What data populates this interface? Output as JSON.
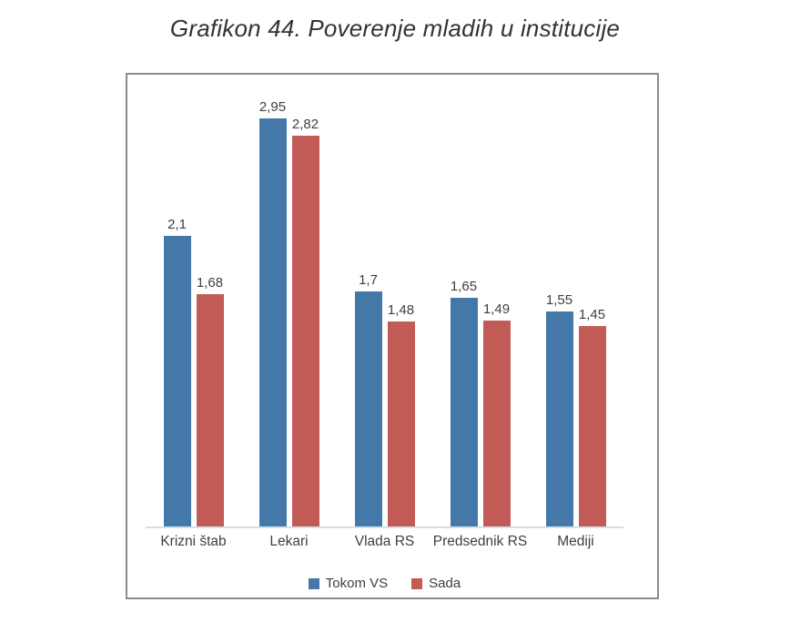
{
  "page": {
    "title": "Grafikon 44. Poverenje mladih u institucije"
  },
  "chart_data": {
    "type": "bar",
    "title": "Grafikon 44. Poverenje mladih u institucije",
    "categories": [
      "Krizni štab",
      "Lekari",
      "Vlada RS",
      "Predsednik RS",
      "Mediji"
    ],
    "series": [
      {
        "name": "Tokom VS",
        "color": "#4478A8",
        "values": [
          2.1,
          2.95,
          1.7,
          1.65,
          1.55
        ],
        "labels": [
          "2,1",
          "2,95",
          "1,7",
          "1,65",
          "1,55"
        ]
      },
      {
        "name": "Sada",
        "color": "#C25B56",
        "values": [
          1.68,
          2.82,
          1.48,
          1.49,
          1.45
        ],
        "labels": [
          "1,68",
          "2,82",
          "1,48",
          "1,49",
          "1,45"
        ]
      }
    ],
    "ylim": [
      0,
      3.26
    ],
    "grid": false,
    "legend_position": "bottom",
    "axis_line_color": "#CCE0F0",
    "frame_border_color": "#8C8C8C",
    "value_label_decimal_separator": ","
  }
}
